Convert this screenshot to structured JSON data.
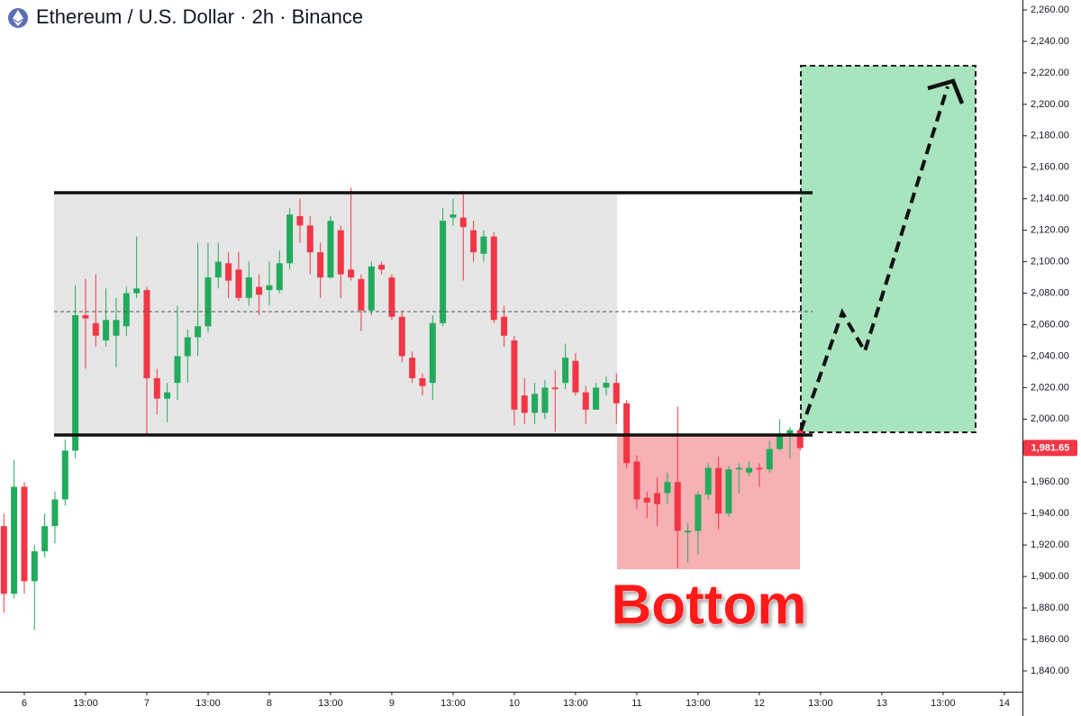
{
  "chart_data": {
    "type": "candlestick",
    "title": "Ethereum / U.S. Dollar · 2h · Binance",
    "annotation": "Bottom",
    "up_color": "#22ab5c",
    "down_color": "#f23645",
    "xlim": [
      -4.76,
      195.55
    ],
    "xticks": [
      {
        "value": 0,
        "label": "6"
      },
      {
        "value": 12,
        "label": "13:00"
      },
      {
        "value": 24,
        "label": "7"
      },
      {
        "value": 36,
        "label": "13:00"
      },
      {
        "value": 48,
        "label": "8"
      },
      {
        "value": 60,
        "label": "13:00"
      },
      {
        "value": 72,
        "label": "9"
      },
      {
        "value": 84,
        "label": "13:00"
      },
      {
        "value": 96,
        "label": "10"
      },
      {
        "value": 108,
        "label": "13:00"
      },
      {
        "value": 120,
        "label": "11"
      },
      {
        "value": 132,
        "label": "13:00"
      },
      {
        "value": 144,
        "label": "12"
      },
      {
        "value": 156,
        "label": "13:00"
      },
      {
        "value": 168,
        "label": "13"
      },
      {
        "value": 180,
        "label": "13:00"
      },
      {
        "value": 192,
        "label": "14"
      }
    ],
    "ylim": [
      1826.8,
      2266.3
    ],
    "yticks": [
      {
        "value": 1840,
        "label": "1,840.00"
      },
      {
        "value": 1860,
        "label": "1,860.00"
      },
      {
        "value": 1880,
        "label": "1,880.00"
      },
      {
        "value": 1900,
        "label": "1,900.00"
      },
      {
        "value": 1920,
        "label": "1,920.00"
      },
      {
        "value": 1940,
        "label": "1,940.00"
      },
      {
        "value": 1960,
        "label": "1,960.00"
      },
      {
        "value": 1980,
        "label": "1,980.00"
      },
      {
        "value": 2000,
        "label": "2,000.00"
      },
      {
        "value": 2020,
        "label": "2,020.00"
      },
      {
        "value": 2040,
        "label": "2,040.00"
      },
      {
        "value": 2060,
        "label": "2,060.00"
      },
      {
        "value": 2080,
        "label": "2,080.00"
      },
      {
        "value": 2100,
        "label": "2,100.00"
      },
      {
        "value": 2120,
        "label": "2,120.00"
      },
      {
        "value": 2140,
        "label": "2,140.00"
      },
      {
        "value": 2160,
        "label": "2,160.00"
      },
      {
        "value": 2180,
        "label": "2,180.00"
      },
      {
        "value": 2200,
        "label": "2,200.00"
      },
      {
        "value": 2220,
        "label": "2,220.00"
      },
      {
        "value": 2240,
        "label": "2,240.00"
      },
      {
        "value": 2260,
        "label": "2,260.00"
      }
    ],
    "last_price": {
      "value": 1981.65,
      "label": "1,981.65"
    },
    "x": [
      -4,
      -2,
      0,
      2,
      4,
      6,
      8,
      10,
      12,
      14,
      16,
      18,
      20,
      22,
      24,
      26,
      28,
      30,
      32,
      34,
      36,
      38,
      40,
      42,
      44,
      46,
      48,
      50,
      52,
      54,
      56,
      58,
      60,
      62,
      64,
      66,
      68,
      70,
      72,
      74,
      76,
      78,
      80,
      82,
      84,
      86,
      88,
      90,
      92,
      94,
      96,
      98,
      100,
      102,
      104,
      106,
      108,
      110,
      112,
      114,
      116,
      118,
      120,
      122,
      124,
      126,
      128,
      130,
      132,
      134,
      136,
      138,
      140,
      142,
      144,
      146,
      148,
      150,
      152
    ],
    "open": [
      1932,
      1889,
      1957,
      1897,
      1916,
      1932,
      1949,
      1980,
      2066,
      2061,
      2050,
      2053,
      2059,
      2080,
      2082,
      2026,
      2013,
      2023,
      2040,
      2052,
      2059,
      2090,
      2099,
      2095,
      2077,
      2084,
      2082,
      2082,
      2099,
      2129,
      2123,
      2106,
      2090,
      2120,
      2095,
      2089,
      2069,
      2098,
      2090,
      2065,
      2039,
      2026,
      2023,
      2061,
      2128,
      2128,
      2120,
      2105,
      2116,
      2065,
      2050,
      2015,
      2004,
      2004,
      2020,
      2023,
      2037,
      2017,
      2006,
      2020,
      2023,
      2010,
      1973,
      1950,
      1953,
      1953,
      1960,
      1928,
      1929,
      1952,
      1969,
      1940,
      1968,
      1966,
      1969,
      1968,
      1981,
      1989,
      1993
    ],
    "high": [
      1940,
      1974,
      1960,
      1920,
      1940,
      1954,
      1987,
      2085,
      2089,
      2092,
      2083,
      2077,
      2084,
      2116,
      2084,
      2032,
      2023,
      2072,
      2057,
      2112,
      2112,
      2112,
      2106,
      2106,
      2100,
      2092,
      2100,
      2107,
      2134,
      2140,
      2129,
      2112,
      2129,
      2123,
      2147,
      2092,
      2100,
      2100,
      2092,
      2069,
      2043,
      2029,
      2066,
      2134,
      2140,
      2145,
      2126,
      2120,
      2119,
      2072,
      2053,
      2026,
      2023,
      2025,
      2031,
      2048,
      2042,
      2021,
      2023,
      2027,
      2029,
      2012,
      1977,
      1954,
      1963,
      1966,
      2008,
      1934,
      1954,
      1972,
      1976,
      1970,
      1972,
      1973,
      1972,
      1986,
      2000,
      1995,
      1995
    ],
    "low": [
      1877,
      1886,
      1889,
      1866,
      1912,
      1921,
      1945,
      1975,
      2032,
      2046,
      2046,
      2033,
      2053,
      2077,
      1990,
      2003,
      1998,
      2012,
      2023,
      2040,
      2055,
      2083,
      2077,
      2075,
      2072,
      2066,
      2072,
      2080,
      2095,
      2112,
      2092,
      2077,
      2089,
      2077,
      2088,
      2056,
      2066,
      2092,
      2063,
      2036,
      2023,
      2015,
      2012,
      2059,
      2123,
      2088,
      2100,
      2100,
      2061,
      2046,
      1996,
      1997,
      1997,
      2000,
      1992,
      2019,
      2015,
      1997,
      2006,
      2015,
      1997,
      1969,
      1943,
      1937,
      1932,
      1946,
      1905,
      1909,
      1914,
      1949,
      1930,
      1938,
      1953,
      1964,
      1957,
      1966,
      1980,
      1975,
      1980
    ],
    "close": [
      1889,
      1957,
      1897,
      1916,
      1932,
      1949,
      1980,
      2066,
      2064,
      2053,
      2063,
      2063,
      2080,
      2083,
      2026,
      2013,
      2017,
      2040,
      2052,
      2059,
      2090,
      2100,
      2088,
      2077,
      2090,
      2079,
      2085,
      2099,
      2130,
      2123,
      2106,
      2090,
      2126,
      2092,
      2090,
      2069,
      2097,
      2095,
      2065,
      2040,
      2026,
      2021,
      2061,
      2126,
      2130,
      2122,
      2106,
      2116,
      2063,
      2053,
      2006,
      2004,
      2016,
      2020,
      2019,
      2039,
      2017,
      2006,
      2020,
      2023,
      2010,
      1972,
      1949,
      1947,
      1946,
      1960,
      1929,
      1929,
      1952,
      1969,
      1940,
      1968,
      1969,
      1969,
      1968,
      1981,
      1989,
      1993,
      1981.65
    ]
  }
}
